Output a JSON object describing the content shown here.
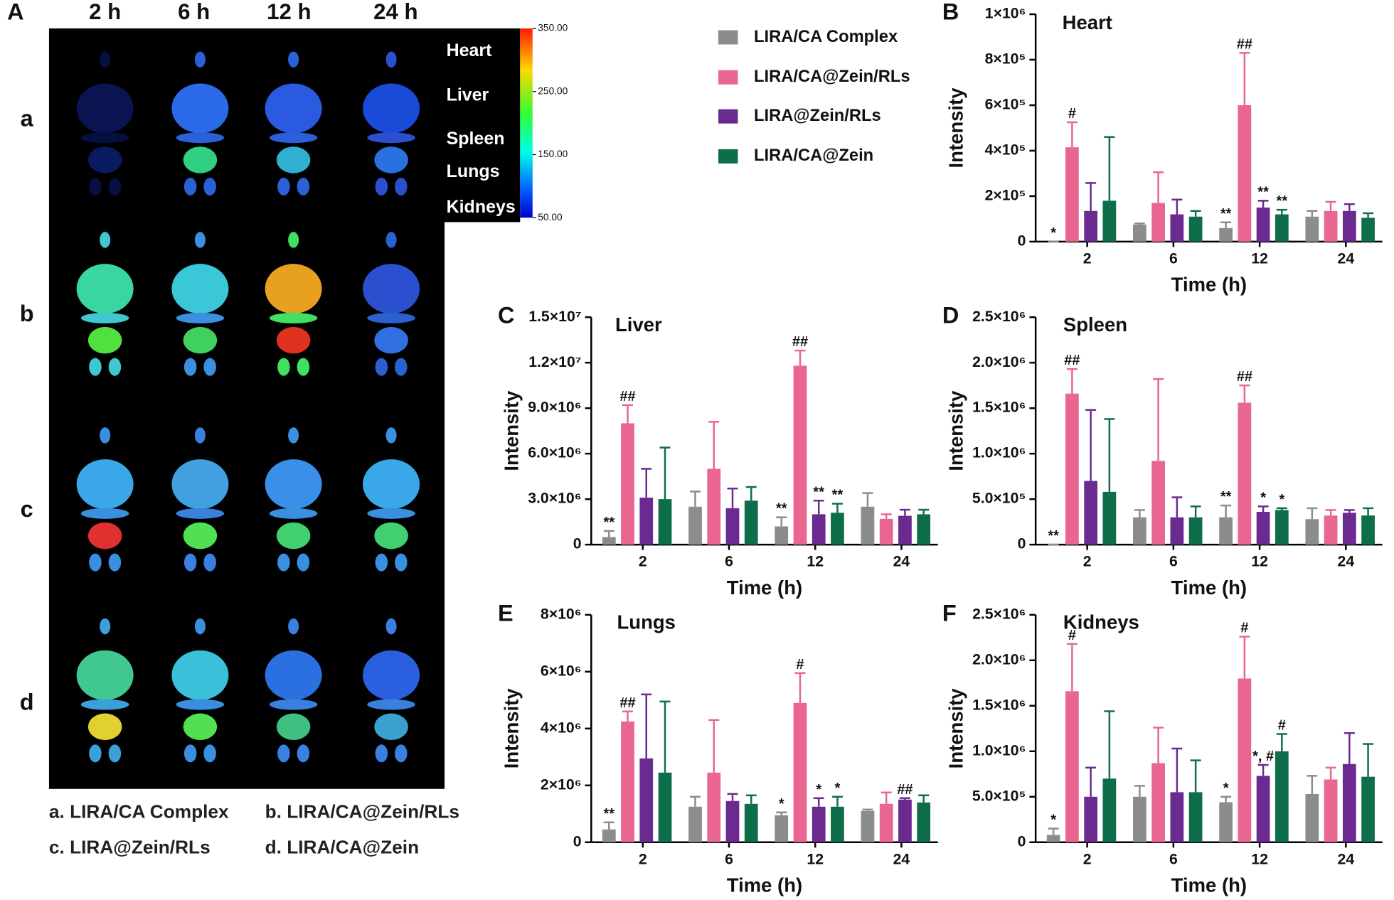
{
  "legend": [
    {
      "name": "LIRA/CA Complex",
      "color": "#8c8c8c"
    },
    {
      "name": "LIRA/CA@Zein/RLs",
      "color": "#e8668f"
    },
    {
      "name": "LIRA@Zein/RLs",
      "color": "#6a2a90"
    },
    {
      "name": "LIRA/CA@Zein",
      "color": "#0e6e4a"
    }
  ],
  "panel_a": {
    "panel": "A",
    "columns": [
      "2 h",
      "6 h",
      "12 h",
      "24 h"
    ],
    "rows": [
      "a",
      "b",
      "c",
      "d"
    ],
    "organs": [
      "Heart",
      "Liver",
      "Spleen",
      "Lungs",
      "Kidneys"
    ],
    "colorbar": {
      "lim": [
        50,
        350
      ],
      "ticks": [
        {
          "value": 350,
          "label": "350.00"
        },
        {
          "value": 250,
          "label": "250.00"
        },
        {
          "value": 150,
          "label": "150.00"
        },
        {
          "value": 50,
          "label": "50.00"
        }
      ]
    },
    "captions": [
      "a. LIRA/CA Complex",
      "b. LIRA/CA@Zein/RLs",
      "c. LIRA@Zein/RLs",
      "d. LIRA/CA@Zein"
    ]
  },
  "chart_data": [
    {
      "type": "bar",
      "panel": "B",
      "title": "Heart",
      "x_label": "Time (h)",
      "y_label": "Intensity",
      "categories": [
        "2",
        "6",
        "12",
        "24"
      ],
      "ylim": [
        0,
        1000000
      ],
      "yticks": [
        0,
        {
          "value": 200000,
          "label": "2×10⁵"
        },
        {
          "value": 400000,
          "label": "4×10⁵"
        },
        {
          "value": 600000,
          "label": "6×10⁵"
        },
        {
          "value": 800000,
          "label": "8×10⁵"
        },
        {
          "value": 1000000,
          "label": "1×10⁶"
        }
      ],
      "series": [
        {
          "values": [
            0,
            75000,
            60000,
            110000
          ],
          "errors": [
            0,
            5000,
            25000,
            25000
          ],
          "annotations": [
            "*",
            null,
            "**",
            null
          ]
        },
        {
          "values": [
            415000,
            170000,
            600000,
            135000
          ],
          "errors": [
            110000,
            135000,
            230000,
            40000
          ],
          "annotations": [
            "#",
            null,
            "##",
            null
          ]
        },
        {
          "values": [
            135000,
            120000,
            150000,
            135000
          ],
          "errors": [
            123000,
            65000,
            30000,
            30000
          ],
          "annotations": [
            null,
            null,
            "**",
            null
          ]
        },
        {
          "values": [
            180000,
            110000,
            120000,
            105000
          ],
          "errors": [
            280000,
            25000,
            20000,
            20000
          ],
          "annotations": [
            null,
            null,
            "**",
            null
          ]
        }
      ]
    },
    {
      "type": "bar",
      "panel": "C",
      "title": "Liver",
      "x_label": "Time (h)",
      "y_label": "Intensity",
      "categories": [
        "2",
        "6",
        "12",
        "24"
      ],
      "ylim": [
        0,
        15000000
      ],
      "yticks": [
        0,
        {
          "value": 3000000,
          "label": "3.0×10⁶"
        },
        {
          "value": 6000000,
          "label": "6.0×10⁶"
        },
        {
          "value": 9000000,
          "label": "9.0×10⁶"
        },
        {
          "value": 12000000,
          "label": "1.2×10⁷"
        },
        {
          "value": 15000000,
          "label": "1.5×10⁷"
        }
      ],
      "series": [
        {
          "values": [
            500000,
            2500000,
            1200000,
            2500000
          ],
          "errors": [
            400000,
            1000000,
            600000,
            900000
          ],
          "annotations": [
            "**",
            null,
            "**",
            null
          ]
        },
        {
          "values": [
            8000000,
            5000000,
            11800000,
            1700000
          ],
          "errors": [
            1200000,
            3100000,
            1000000,
            300000
          ],
          "annotations": [
            "##",
            null,
            "##",
            null
          ]
        },
        {
          "values": [
            3100000,
            2400000,
            2000000,
            1900000
          ],
          "errors": [
            1900000,
            1300000,
            900000,
            400000
          ],
          "annotations": [
            null,
            null,
            "**",
            null
          ]
        },
        {
          "values": [
            3000000,
            2900000,
            2100000,
            2000000
          ],
          "errors": [
            3400000,
            900000,
            600000,
            300000
          ],
          "annotations": [
            null,
            null,
            "**",
            null
          ]
        }
      ]
    },
    {
      "type": "bar",
      "panel": "D",
      "title": "Spleen",
      "x_label": "Time (h)",
      "y_label": "Intensity",
      "categories": [
        "2",
        "6",
        "12",
        "24"
      ],
      "ylim": [
        0,
        2500000
      ],
      "yticks": [
        0,
        {
          "value": 500000,
          "label": "5.0×10⁵"
        },
        {
          "value": 1000000,
          "label": "1.0×10⁶"
        },
        {
          "value": 1500000,
          "label": "1.5×10⁶"
        },
        {
          "value": 2000000,
          "label": "2.0×10⁶"
        },
        {
          "value": 2500000,
          "label": "2.5×10⁶"
        }
      ],
      "series": [
        {
          "values": [
            0,
            300000,
            300000,
            280000
          ],
          "errors": [
            0,
            80000,
            130000,
            120000
          ],
          "annotations": [
            "**",
            null,
            "**",
            null
          ]
        },
        {
          "values": [
            1660000,
            920000,
            1560000,
            320000
          ],
          "errors": [
            270000,
            900000,
            190000,
            60000
          ],
          "annotations": [
            "##",
            null,
            "##",
            null
          ]
        },
        {
          "values": [
            700000,
            300000,
            360000,
            350000
          ],
          "errors": [
            780000,
            220000,
            60000,
            30000
          ],
          "annotations": [
            null,
            null,
            "*",
            null
          ]
        },
        {
          "values": [
            580000,
            300000,
            380000,
            320000
          ],
          "errors": [
            800000,
            120000,
            20000,
            80000
          ],
          "annotations": [
            null,
            null,
            "*",
            null
          ]
        }
      ]
    },
    {
      "type": "bar",
      "panel": "E",
      "title": "Lungs",
      "x_label": "Time (h)",
      "y_label": "Intensity",
      "categories": [
        "2",
        "6",
        "12",
        "24"
      ],
      "ylim": [
        0,
        8000000
      ],
      "yticks": [
        0,
        {
          "value": 2000000,
          "label": "2×10⁶"
        },
        {
          "value": 4000000,
          "label": "4×10⁶"
        },
        {
          "value": 6000000,
          "label": "6×10⁶"
        },
        {
          "value": 8000000,
          "label": "8×10⁶"
        }
      ],
      "series": [
        {
          "values": [
            450000,
            1250000,
            950000,
            1100000
          ],
          "errors": [
            250000,
            350000,
            100000,
            50000
          ],
          "annotations": [
            "**",
            null,
            "*",
            null
          ]
        },
        {
          "values": [
            4250000,
            2450000,
            4900000,
            1350000
          ],
          "errors": [
            350000,
            1850000,
            1050000,
            400000
          ],
          "annotations": [
            "##",
            null,
            "#",
            null
          ]
        },
        {
          "values": [
            2950000,
            1450000,
            1250000,
            1500000
          ],
          "errors": [
            2250000,
            250000,
            300000,
            50000
          ],
          "annotations": [
            null,
            null,
            "*",
            "##"
          ]
        },
        {
          "values": [
            2450000,
            1350000,
            1250000,
            1400000
          ],
          "errors": [
            2500000,
            300000,
            350000,
            250000
          ],
          "annotations": [
            null,
            null,
            "*",
            null
          ]
        }
      ]
    },
    {
      "type": "bar",
      "panel": "F",
      "title": "Kidneys",
      "x_label": "Time (h)",
      "y_label": "Intensity",
      "categories": [
        "2",
        "6",
        "12",
        "24"
      ],
      "ylim": [
        0,
        2500000
      ],
      "yticks": [
        0,
        {
          "value": 500000,
          "label": "5.0×10⁵"
        },
        {
          "value": 1000000,
          "label": "1.0×10⁶"
        },
        {
          "value": 1500000,
          "label": "1.5×10⁶"
        },
        {
          "value": 2000000,
          "label": "2.0×10⁶"
        },
        {
          "value": 2500000,
          "label": "2.5×10⁶"
        }
      ],
      "series": [
        {
          "values": [
            80000,
            500000,
            440000,
            530000
          ],
          "errors": [
            70000,
            120000,
            60000,
            200000
          ],
          "annotations": [
            "*",
            null,
            "*",
            null
          ]
        },
        {
          "values": [
            1660000,
            870000,
            1800000,
            690000
          ],
          "errors": [
            520000,
            390000,
            460000,
            130000
          ],
          "annotations": [
            "#",
            null,
            "#",
            null
          ]
        },
        {
          "values": [
            500000,
            550000,
            730000,
            860000
          ],
          "errors": [
            320000,
            480000,
            120000,
            340000
          ],
          "annotations": [
            null,
            null,
            "*, #",
            null
          ]
        },
        {
          "values": [
            700000,
            550000,
            1000000,
            720000
          ],
          "errors": [
            740000,
            350000,
            190000,
            360000
          ],
          "annotations": [
            null,
            null,
            "#",
            null
          ]
        }
      ]
    }
  ]
}
